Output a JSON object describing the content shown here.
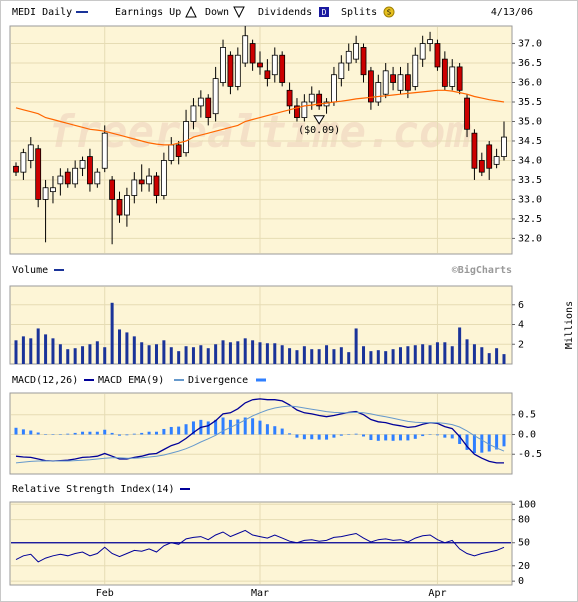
{
  "chart_data": [
    {
      "type": "candlestick",
      "title": "MEDI Daily",
      "date": "4/13/06",
      "legend_items": [
        "Earnings Up",
        "Down",
        "Dividends",
        "Splits"
      ],
      "dividend_symbol": "D",
      "split_symbol": "S",
      "credit": "©BigCharts",
      "watermark": "freerealtime.com",
      "up_color": "#ffffff",
      "down_color": "#cc0000",
      "open": [
        33.85,
        33.7,
        34.0,
        34.3,
        33.0,
        33.2,
        33.4,
        33.7,
        33.4,
        33.8,
        34.1,
        33.4,
        33.8,
        33.5,
        33.0,
        32.6,
        33.1,
        33.5,
        33.4,
        33.6,
        33.1,
        34.0,
        34.4,
        34.2,
        35.0,
        35.4,
        35.6,
        35.2,
        36.0,
        36.7,
        35.9,
        36.5,
        37.0,
        36.5,
        36.3,
        36.2,
        36.7,
        35.8,
        35.4,
        35.1,
        35.5,
        35.7,
        35.4,
        35.5,
        36.1,
        36.5,
        36.6,
        36.9,
        36.3,
        35.5,
        35.7,
        36.2,
        35.8,
        36.2,
        35.9,
        36.6,
        37.0,
        37.0,
        36.6,
        35.9,
        36.4,
        35.6,
        34.7,
        34.0,
        34.4,
        33.9,
        34.1
      ],
      "high": [
        33.95,
        34.3,
        34.6,
        34.4,
        33.5,
        33.6,
        33.8,
        33.8,
        34.0,
        34.1,
        34.3,
        33.8,
        34.9,
        33.6,
        33.2,
        33.3,
        33.7,
        33.9,
        33.8,
        33.7,
        34.2,
        34.6,
        34.5,
        35.3,
        35.6,
        35.8,
        35.7,
        36.4,
        37.1,
        36.8,
        36.9,
        37.45,
        37.1,
        36.8,
        36.6,
        36.9,
        36.8,
        36.0,
        35.6,
        35.7,
        35.9,
        35.8,
        35.6,
        36.4,
        36.7,
        37.0,
        37.2,
        37.0,
        36.4,
        36.2,
        36.5,
        36.4,
        36.4,
        36.5,
        36.9,
        37.2,
        37.3,
        37.1,
        36.8,
        36.6,
        36.5,
        35.7,
        34.8,
        34.2,
        34.5,
        34.3,
        35.0
      ],
      "low": [
        33.6,
        33.5,
        33.8,
        32.8,
        31.9,
        32.9,
        33.1,
        33.3,
        33.3,
        33.6,
        33.2,
        33.3,
        33.7,
        31.85,
        32.4,
        32.3,
        32.9,
        33.2,
        33.2,
        32.9,
        33.0,
        33.9,
        33.9,
        34.1,
        34.8,
        35.1,
        34.9,
        35.0,
        35.9,
        35.7,
        35.8,
        36.4,
        36.3,
        36.2,
        35.9,
        36.0,
        35.9,
        35.2,
        35.0,
        35.0,
        35.3,
        35.3,
        35.2,
        35.4,
        35.9,
        36.3,
        36.5,
        36.0,
        35.3,
        35.4,
        35.6,
        35.8,
        35.7,
        35.6,
        35.8,
        36.4,
        36.8,
        36.3,
        35.8,
        35.8,
        35.7,
        34.6,
        33.5,
        33.6,
        33.5,
        33.8,
        34.0
      ],
      "close": [
        33.7,
        34.2,
        34.4,
        33.0,
        33.3,
        33.3,
        33.6,
        33.4,
        33.8,
        34.0,
        33.4,
        33.7,
        34.7,
        33.0,
        32.6,
        33.1,
        33.5,
        33.4,
        33.6,
        33.1,
        34.0,
        34.4,
        34.1,
        35.0,
        35.4,
        35.6,
        35.1,
        36.1,
        36.9,
        35.9,
        36.7,
        37.2,
        36.5,
        36.4,
        36.1,
        36.7,
        36.0,
        35.4,
        35.1,
        35.5,
        35.7,
        35.4,
        35.5,
        36.2,
        36.5,
        36.8,
        37.0,
        36.2,
        35.5,
        36.0,
        36.3,
        36.0,
        36.2,
        35.8,
        36.7,
        37.0,
        37.1,
        36.4,
        35.9,
        36.4,
        35.8,
        34.8,
        33.8,
        33.7,
        33.8,
        34.1,
        34.6
      ],
      "moving_average": {
        "color": "#ff6600",
        "values": [
          35.35,
          35.3,
          35.25,
          35.2,
          35.1,
          35.05,
          35.0,
          34.95,
          34.9,
          34.85,
          34.8,
          34.78,
          34.75,
          34.7,
          34.65,
          34.6,
          34.55,
          34.5,
          34.45,
          34.42,
          34.4,
          34.4,
          34.45,
          34.5,
          34.6,
          34.65,
          34.7,
          34.75,
          34.8,
          34.85,
          34.9,
          35.0,
          35.05,
          35.1,
          35.15,
          35.2,
          35.25,
          35.3,
          35.35,
          35.4,
          35.42,
          35.45,
          35.47,
          35.5,
          35.52,
          35.55,
          35.58,
          35.6,
          35.62,
          35.64,
          35.66,
          35.68,
          35.7,
          35.72,
          35.74,
          35.76,
          35.78,
          35.8,
          35.8,
          35.78,
          35.74,
          35.7,
          35.64,
          35.6,
          35.56,
          35.53,
          35.5
        ]
      },
      "dividends": [
        {
          "at": 41,
          "label": "($0.09)"
        }
      ],
      "ylim": [
        31.6,
        37.45
      ],
      "yticks": [
        {
          "value": 32,
          "label": "32.0"
        },
        {
          "value": 32.5,
          "label": "32.5"
        },
        {
          "value": 33,
          "label": "33.0"
        },
        {
          "value": 33.5,
          "label": "33.5"
        },
        {
          "value": 34,
          "label": "34.0"
        },
        {
          "value": 34.5,
          "label": "34.5"
        },
        {
          "value": 35,
          "label": "35.0"
        },
        {
          "value": 35.5,
          "label": "35.5"
        },
        {
          "value": 36,
          "label": "36.0"
        },
        {
          "value": 36.5,
          "label": "36.5"
        },
        {
          "value": 37,
          "label": "37.0"
        }
      ],
      "grid": true
    },
    {
      "type": "bar",
      "title": "Volume",
      "ylabel": "Millions",
      "color": "#1a3399",
      "values": [
        2.4,
        2.8,
        2.6,
        3.6,
        3.0,
        2.6,
        2.0,
        1.5,
        1.6,
        1.8,
        2.0,
        2.3,
        1.7,
        6.2,
        3.5,
        3.2,
        2.8,
        2.2,
        1.9,
        2.0,
        2.4,
        1.7,
        1.3,
        1.8,
        1.7,
        1.9,
        1.6,
        2.0,
        2.4,
        2.2,
        2.3,
        2.6,
        2.4,
        2.2,
        2.1,
        2.1,
        1.9,
        1.6,
        1.4,
        1.8,
        1.5,
        1.5,
        1.9,
        1.5,
        1.7,
        1.2,
        3.6,
        1.8,
        1.3,
        1.4,
        1.3,
        1.5,
        1.7,
        1.8,
        1.9,
        2.0,
        1.9,
        2.2,
        2.2,
        1.8,
        3.7,
        2.5,
        2.0,
        1.7,
        1.1,
        1.6,
        1.0
      ],
      "ylim": [
        0,
        7.9
      ],
      "yticks": [
        2,
        4,
        6
      ],
      "grid": true
    },
    {
      "type": "macd",
      "series": [
        {
          "name": "MACD(12,26)",
          "color": "#000099",
          "kind": "line",
          "values": [
            -0.55,
            -0.57,
            -0.58,
            -0.62,
            -0.66,
            -0.67,
            -0.66,
            -0.65,
            -0.62,
            -0.58,
            -0.57,
            -0.55,
            -0.48,
            -0.55,
            -0.62,
            -0.62,
            -0.58,
            -0.55,
            -0.5,
            -0.48,
            -0.38,
            -0.28,
            -0.22,
            -0.1,
            0.05,
            0.18,
            0.22,
            0.35,
            0.52,
            0.55,
            0.65,
            0.8,
            0.88,
            0.9,
            0.88,
            0.88,
            0.85,
            0.75,
            0.62,
            0.55,
            0.52,
            0.48,
            0.45,
            0.48,
            0.52,
            0.56,
            0.58,
            0.5,
            0.38,
            0.32,
            0.3,
            0.25,
            0.22,
            0.18,
            0.2,
            0.26,
            0.3,
            0.28,
            0.2,
            0.15,
            -0.05,
            -0.3,
            -0.5,
            -0.6,
            -0.68,
            -0.72,
            -0.72
          ]
        },
        {
          "name": "MACD EMA(9)",
          "color": "#6699cc",
          "kind": "line",
          "values": [
            -0.72,
            -0.7,
            -0.68,
            -0.67,
            -0.67,
            -0.67,
            -0.67,
            -0.67,
            -0.66,
            -0.65,
            -0.64,
            -0.62,
            -0.6,
            -0.59,
            -0.59,
            -0.6,
            -0.6,
            -0.59,
            -0.57,
            -0.55,
            -0.52,
            -0.47,
            -0.42,
            -0.36,
            -0.28,
            -0.19,
            -0.11,
            -0.02,
            0.09,
            0.18,
            0.27,
            0.37,
            0.47,
            0.55,
            0.62,
            0.67,
            0.7,
            0.72,
            0.7,
            0.67,
            0.64,
            0.61,
            0.58,
            0.56,
            0.55,
            0.55,
            0.56,
            0.55,
            0.52,
            0.48,
            0.45,
            0.41,
            0.37,
            0.33,
            0.31,
            0.3,
            0.3,
            0.3,
            0.28,
            0.25,
            0.19,
            0.09,
            -0.03,
            -0.14,
            -0.25,
            -0.34,
            -0.42
          ]
        },
        {
          "name": "Divergence",
          "color": "#2f7fff",
          "kind": "bar",
          "values": [
            0.17,
            0.13,
            0.1,
            0.05,
            0.01,
            0,
            0.01,
            0.02,
            0.04,
            0.07,
            0.07,
            0.07,
            0.12,
            0.04,
            -0.03,
            -0.02,
            0.02,
            0.04,
            0.07,
            0.07,
            0.14,
            0.19,
            0.2,
            0.26,
            0.33,
            0.37,
            0.33,
            0.37,
            0.43,
            0.37,
            0.38,
            0.43,
            0.41,
            0.35,
            0.26,
            0.21,
            0.15,
            0.03,
            -0.08,
            -0.12,
            -0.12,
            -0.13,
            -0.13,
            -0.08,
            -0.03,
            0.01,
            0.02,
            -0.05,
            -0.14,
            -0.16,
            -0.15,
            -0.16,
            -0.15,
            -0.15,
            -0.11,
            -0.04,
            0,
            -0.02,
            -0.08,
            -0.1,
            -0.24,
            -0.39,
            -0.47,
            -0.46,
            -0.43,
            -0.38,
            -0.3
          ]
        }
      ],
      "ylim": [
        -1.0,
        1.05
      ],
      "yticks": [
        0.5,
        {
          "value": 0,
          "label": "0.0"
        },
        -0.5
      ],
      "grid": true
    },
    {
      "type": "line",
      "title": "Relative Strength Index(14)",
      "color": "#000099",
      "reference": 50,
      "categories": [
        null,
        null,
        null,
        null,
        null,
        null,
        null,
        null,
        null,
        null,
        null,
        null,
        "Feb",
        null,
        null,
        null,
        null,
        null,
        null,
        null,
        null,
        null,
        null,
        null,
        null,
        null,
        null,
        null,
        null,
        null,
        null,
        null,
        null,
        "Mar",
        null,
        null,
        null,
        null,
        null,
        null,
        null,
        null,
        null,
        null,
        null,
        null,
        null,
        null,
        null,
        null,
        null,
        null,
        null,
        null,
        null,
        null,
        null,
        "Apr",
        null,
        null,
        null,
        null,
        null,
        null,
        null,
        null,
        null
      ],
      "values": [
        28,
        33,
        35,
        25,
        30,
        33,
        35,
        33,
        36,
        38,
        33,
        36,
        44,
        36,
        32,
        36,
        40,
        39,
        42,
        38,
        46,
        50,
        48,
        55,
        57,
        58,
        54,
        60,
        64,
        58,
        62,
        66,
        60,
        58,
        56,
        60,
        56,
        52,
        50,
        53,
        54,
        52,
        53,
        57,
        58,
        60,
        62,
        56,
        51,
        54,
        55,
        53,
        54,
        51,
        56,
        59,
        60,
        54,
        50,
        53,
        42,
        36,
        33,
        36,
        38,
        40,
        44
      ],
      "ylim": [
        -5,
        103
      ],
      "yticks": [
        0,
        20,
        50,
        80,
        100
      ],
      "grid": true
    }
  ]
}
